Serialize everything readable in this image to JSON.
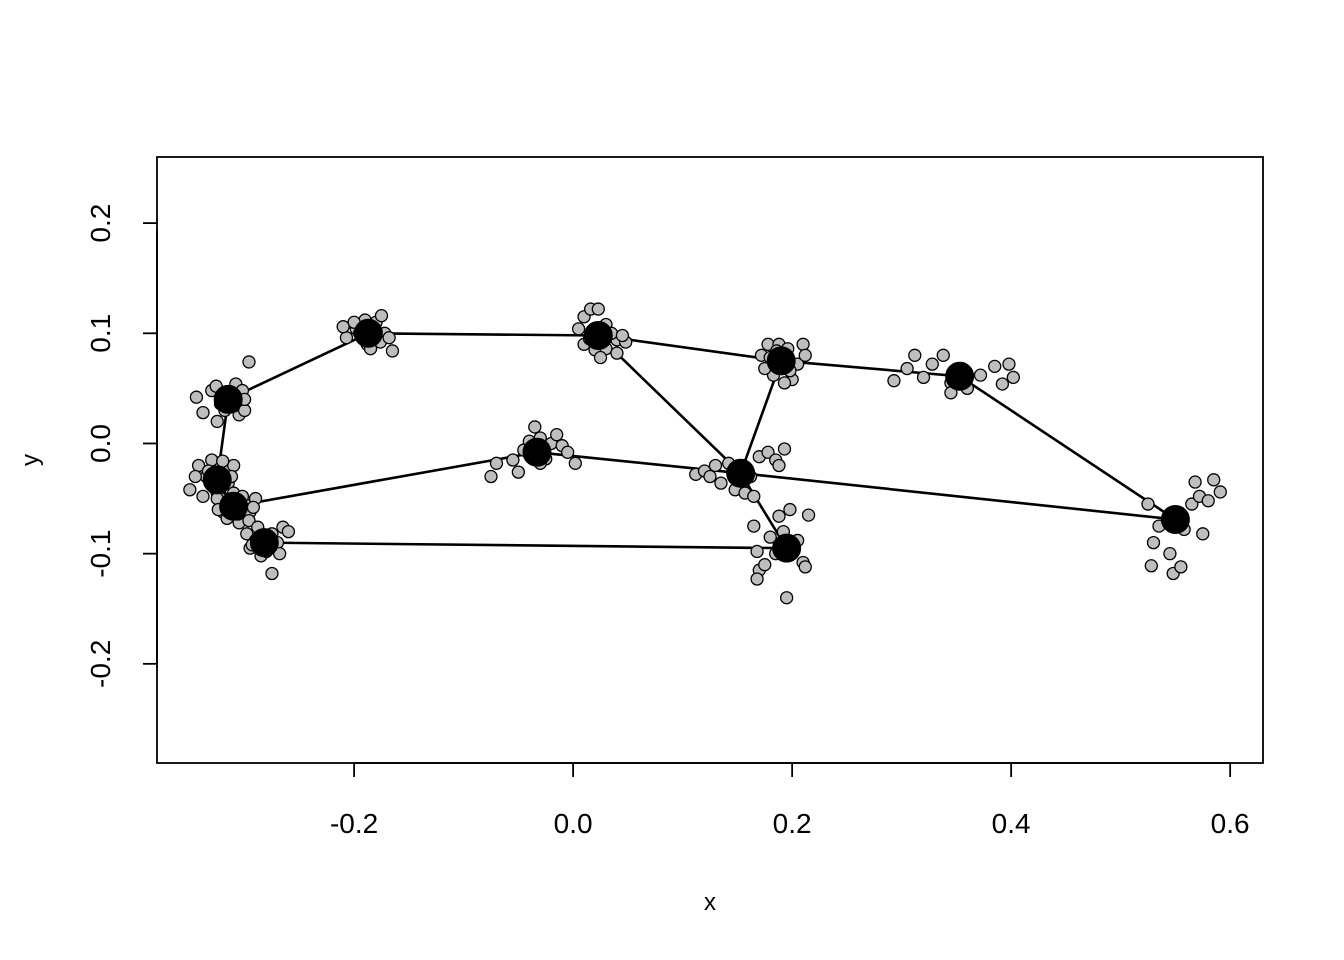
{
  "chart_data": {
    "type": "scatter",
    "title": "",
    "xlabel": "x",
    "ylabel": "y",
    "xlim": [
      -0.38,
      0.63
    ],
    "ylim": [
      -0.29,
      0.26
    ],
    "xticks": [
      -0.2,
      0.0,
      0.2,
      0.4,
      0.6
    ],
    "xtick_labels": [
      "-0.2",
      "0.0",
      "0.2",
      "0.4",
      "0.6"
    ],
    "yticks": [
      -0.2,
      -0.1,
      0.0,
      0.1,
      0.2
    ],
    "ytick_labels": [
      "-0.2",
      "-0.1",
      "0.0",
      "0.1",
      "0.2"
    ],
    "grid": false,
    "legend": "none",
    "colors": {
      "mean_points": "#000000",
      "sample_points_fill": "#bebebe",
      "sample_points_stroke": "#000000",
      "links": "#000000"
    },
    "landmarks": [
      {
        "x": -0.315,
        "y": 0.04
      },
      {
        "x": -0.187,
        "y": 0.1
      },
      {
        "x": 0.023,
        "y": 0.098
      },
      {
        "x": 0.19,
        "y": 0.075
      },
      {
        "x": 0.353,
        "y": 0.061
      },
      {
        "x": 0.55,
        "y": -0.069
      },
      {
        "x": 0.153,
        "y": -0.027
      },
      {
        "x": -0.033,
        "y": -0.008
      },
      {
        "x": -0.325,
        "y": -0.033
      },
      {
        "x": -0.31,
        "y": -0.057
      },
      {
        "x": -0.282,
        "y": -0.09
      },
      {
        "x": 0.195,
        "y": -0.095
      }
    ],
    "links": [
      [
        0,
        1
      ],
      [
        1,
        2
      ],
      [
        2,
        3
      ],
      [
        3,
        4
      ],
      [
        4,
        5
      ],
      [
        5,
        6
      ],
      [
        6,
        7
      ],
      [
        7,
        9
      ],
      [
        0,
        8
      ],
      [
        8,
        9
      ],
      [
        10,
        11
      ],
      [
        2,
        6
      ],
      [
        6,
        11
      ],
      [
        6,
        3
      ]
    ],
    "sample_points": [
      [
        -0.325,
        0.02
      ],
      [
        -0.305,
        0.026
      ],
      [
        -0.296,
        0.074
      ],
      [
        -0.338,
        0.028
      ],
      [
        -0.344,
        0.042
      ],
      [
        -0.33,
        0.048
      ],
      [
        -0.3,
        0.03
      ],
      [
        -0.308,
        0.054
      ],
      [
        -0.322,
        0.036
      ],
      [
        -0.312,
        0.044
      ],
      [
        -0.318,
        0.03
      ],
      [
        -0.302,
        0.048
      ],
      [
        -0.326,
        0.052
      ],
      [
        -0.31,
        0.034
      ],
      [
        -0.3,
        0.04
      ],
      [
        -0.207,
        0.096
      ],
      [
        -0.198,
        0.104
      ],
      [
        -0.19,
        0.112
      ],
      [
        -0.18,
        0.11
      ],
      [
        -0.172,
        0.1
      ],
      [
        -0.165,
        0.084
      ],
      [
        -0.176,
        0.092
      ],
      [
        -0.188,
        0.09
      ],
      [
        -0.2,
        0.11
      ],
      [
        -0.21,
        0.106
      ],
      [
        -0.185,
        0.086
      ],
      [
        -0.175,
        0.116
      ],
      [
        -0.195,
        0.1
      ],
      [
        -0.182,
        0.104
      ],
      [
        -0.168,
        0.096
      ],
      [
        0.01,
        0.115
      ],
      [
        0.016,
        0.122
      ],
      [
        0.023,
        0.122
      ],
      [
        0.03,
        0.108
      ],
      [
        0.04,
        0.094
      ],
      [
        0.048,
        0.092
      ],
      [
        0.005,
        0.104
      ],
      [
        0.01,
        0.09
      ],
      [
        0.02,
        0.085
      ],
      [
        0.03,
        0.086
      ],
      [
        0.015,
        0.095
      ],
      [
        0.035,
        0.1
      ],
      [
        0.045,
        0.098
      ],
      [
        0.025,
        0.078
      ],
      [
        0.04,
        0.082
      ],
      [
        0.172,
        0.08
      ],
      [
        0.178,
        0.09
      ],
      [
        0.188,
        0.09
      ],
      [
        0.196,
        0.086
      ],
      [
        0.21,
        0.09
      ],
      [
        0.205,
        0.072
      ],
      [
        0.2,
        0.058
      ],
      [
        0.193,
        0.055
      ],
      [
        0.183,
        0.062
      ],
      [
        0.175,
        0.068
      ],
      [
        0.212,
        0.08
      ],
      [
        0.19,
        0.072
      ],
      [
        0.18,
        0.078
      ],
      [
        0.198,
        0.066
      ],
      [
        0.186,
        0.084
      ],
      [
        0.293,
        0.057
      ],
      [
        0.305,
        0.068
      ],
      [
        0.312,
        0.08
      ],
      [
        0.32,
        0.06
      ],
      [
        0.328,
        0.072
      ],
      [
        0.338,
        0.08
      ],
      [
        0.345,
        0.055
      ],
      [
        0.355,
        0.068
      ],
      [
        0.36,
        0.05
      ],
      [
        0.372,
        0.062
      ],
      [
        0.385,
        0.07
      ],
      [
        0.392,
        0.054
      ],
      [
        0.398,
        0.072
      ],
      [
        0.402,
        0.06
      ],
      [
        0.345,
        0.046
      ],
      [
        0.525,
        -0.055
      ],
      [
        0.53,
        -0.09
      ],
      [
        0.528,
        -0.111
      ],
      [
        0.545,
        -0.1
      ],
      [
        0.548,
        -0.118
      ],
      [
        0.555,
        -0.112
      ],
      [
        0.558,
        -0.078
      ],
      [
        0.565,
        -0.055
      ],
      [
        0.568,
        -0.035
      ],
      [
        0.572,
        -0.048
      ],
      [
        0.575,
        -0.082
      ],
      [
        0.585,
        -0.033
      ],
      [
        0.591,
        -0.044
      ],
      [
        0.58,
        -0.052
      ],
      [
        0.535,
        -0.075
      ],
      [
        0.112,
        -0.028
      ],
      [
        0.12,
        -0.025
      ],
      [
        0.125,
        -0.03
      ],
      [
        0.13,
        -0.02
      ],
      [
        0.135,
        -0.036
      ],
      [
        0.142,
        -0.018
      ],
      [
        0.148,
        -0.042
      ],
      [
        0.157,
        -0.045
      ],
      [
        0.162,
        -0.03
      ],
      [
        0.17,
        -0.012
      ],
      [
        0.178,
        -0.008
      ],
      [
        0.185,
        -0.015
      ],
      [
        0.193,
        -0.005
      ],
      [
        0.188,
        -0.02
      ],
      [
        0.165,
        -0.048
      ],
      [
        -0.075,
        -0.03
      ],
      [
        -0.07,
        -0.018
      ],
      [
        -0.055,
        -0.015
      ],
      [
        -0.05,
        -0.026
      ],
      [
        -0.045,
        -0.006
      ],
      [
        -0.04,
        0.002
      ],
      [
        -0.035,
        0.015
      ],
      [
        -0.03,
        0.005
      ],
      [
        -0.025,
        -0.014
      ],
      [
        -0.02,
        0.0
      ],
      [
        -0.015,
        0.008
      ],
      [
        -0.01,
        -0.002
      ],
      [
        -0.005,
        -0.008
      ],
      [
        0.002,
        -0.018
      ],
      [
        -0.03,
        -0.018
      ],
      [
        -0.35,
        -0.042
      ],
      [
        -0.342,
        -0.02
      ],
      [
        -0.335,
        -0.03
      ],
      [
        -0.33,
        -0.015
      ],
      [
        -0.325,
        -0.045
      ],
      [
        -0.318,
        -0.024
      ],
      [
        -0.315,
        -0.036
      ],
      [
        -0.31,
        -0.02
      ],
      [
        -0.338,
        -0.048
      ],
      [
        -0.328,
        -0.04
      ],
      [
        -0.32,
        -0.016
      ],
      [
        -0.345,
        -0.03
      ],
      [
        -0.333,
        -0.025
      ],
      [
        -0.322,
        -0.05
      ],
      [
        -0.312,
        -0.03
      ],
      [
        -0.325,
        -0.05
      ],
      [
        -0.32,
        -0.062
      ],
      [
        -0.316,
        -0.068
      ],
      [
        -0.31,
        -0.045
      ],
      [
        -0.305,
        -0.072
      ],
      [
        -0.3,
        -0.055
      ],
      [
        -0.295,
        -0.062
      ],
      [
        -0.29,
        -0.05
      ],
      [
        -0.318,
        -0.058
      ],
      [
        -0.306,
        -0.064
      ],
      [
        -0.296,
        -0.07
      ],
      [
        -0.312,
        -0.052
      ],
      [
        -0.324,
        -0.06
      ],
      [
        -0.302,
        -0.048
      ],
      [
        -0.292,
        -0.058
      ],
      [
        -0.298,
        -0.082
      ],
      [
        -0.295,
        -0.095
      ],
      [
        -0.29,
        -0.088
      ],
      [
        -0.285,
        -0.102
      ],
      [
        -0.28,
        -0.098
      ],
      [
        -0.275,
        -0.082
      ],
      [
        -0.27,
        -0.09
      ],
      [
        -0.265,
        -0.076
      ],
      [
        -0.26,
        -0.08
      ],
      [
        -0.275,
        -0.118
      ],
      [
        -0.288,
        -0.076
      ],
      [
        -0.282,
        -0.085
      ],
      [
        -0.293,
        -0.092
      ],
      [
        -0.268,
        -0.1
      ],
      [
        -0.278,
        -0.092
      ],
      [
        0.165,
        -0.075
      ],
      [
        0.168,
        -0.098
      ],
      [
        0.17,
        -0.115
      ],
      [
        0.168,
        -0.123
      ],
      [
        0.175,
        -0.11
      ],
      [
        0.18,
        -0.085
      ],
      [
        0.185,
        -0.1
      ],
      [
        0.188,
        -0.066
      ],
      [
        0.192,
        -0.08
      ],
      [
        0.195,
        -0.14
      ],
      [
        0.198,
        -0.06
      ],
      [
        0.205,
        -0.088
      ],
      [
        0.21,
        -0.108
      ],
      [
        0.215,
        -0.065
      ],
      [
        0.212,
        -0.112
      ]
    ]
  }
}
